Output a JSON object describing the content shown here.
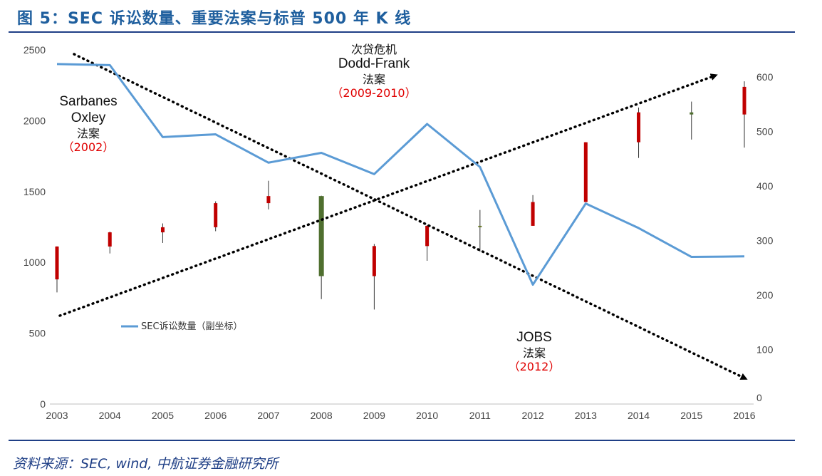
{
  "title": "图 5：SEC 诉讼数量、重要法案与标普 500 年 K 线",
  "source": "资料来源：SEC, wind, 中航证券金融研究所",
  "annotations": {
    "sox": {
      "line1": "Sarbanes",
      "line2": "Oxley",
      "line3": "法案",
      "line4": "（2002）"
    },
    "dodd": {
      "line1": "次贷危机",
      "line2": "Dodd-Frank",
      "line3": "法案",
      "line4": "（2009-2010）"
    },
    "jobs": {
      "line1": "JOBS",
      "line2": "法案",
      "line3": "（2012）"
    }
  },
  "colors": {
    "line": "#5b9bd5",
    "up": "#c00000",
    "down": "#4f6f2f",
    "axis_rule": "#1f3f86",
    "title": "#1f5f9e"
  },
  "chart_data": {
    "type": "candlestick+line",
    "categories": [
      "2003",
      "2004",
      "2005",
      "2006",
      "2007",
      "2008",
      "2009",
      "2010",
      "2011",
      "2012",
      "2013",
      "2014",
      "2015",
      "2016"
    ],
    "left_axis": {
      "range": [
        0,
        2500
      ],
      "ticks": [
        0,
        500,
        1000,
        1500,
        2000,
        2500
      ]
    },
    "right_axis": {
      "range": [
        0,
        650
      ],
      "ticks": [
        0,
        100,
        200,
        300,
        400,
        500,
        600
      ]
    },
    "candles": [
      {
        "year": "2003",
        "open": 880,
        "close": 1112,
        "high": 1113,
        "low": 788
      },
      {
        "year": "2004",
        "open": 1112,
        "close": 1212,
        "high": 1217,
        "low": 1063
      },
      {
        "year": "2005",
        "open": 1212,
        "close": 1248,
        "high": 1275,
        "low": 1137
      },
      {
        "year": "2006",
        "open": 1248,
        "close": 1418,
        "high": 1431,
        "low": 1220
      },
      {
        "year": "2007",
        "open": 1418,
        "close": 1468,
        "high": 1576,
        "low": 1374
      },
      {
        "year": "2008",
        "open": 1468,
        "close": 903,
        "high": 1471,
        "low": 741
      },
      {
        "year": "2009",
        "open": 903,
        "close": 1115,
        "high": 1130,
        "low": 667
      },
      {
        "year": "2010",
        "open": 1115,
        "close": 1258,
        "high": 1262,
        "low": 1011
      },
      {
        "year": "2011",
        "open": 1258,
        "close": 1258,
        "high": 1370,
        "low": 1075
      },
      {
        "year": "2012",
        "open": 1258,
        "close": 1426,
        "high": 1475,
        "low": 1259
      },
      {
        "year": "2013",
        "open": 1426,
        "close": 1848,
        "high": 1849,
        "low": 1426
      },
      {
        "year": "2014",
        "open": 1848,
        "close": 2059,
        "high": 2093,
        "low": 1737
      },
      {
        "year": "2015",
        "open": 2059,
        "close": 2044,
        "high": 2135,
        "low": 1867
      },
      {
        "year": "2016",
        "open": 2044,
        "close": 2239,
        "high": 2278,
        "low": 1810
      }
    ],
    "series": [
      {
        "name": "SEC诉讼数量（副坐标）",
        "axis": "right",
        "values": [
          624,
          622,
          490,
          495,
          443,
          461,
          422,
          514,
          435,
          219,
          368,
          323,
          270,
          271
        ]
      }
    ],
    "trend_arrows": [
      "downward from 2003 to 2016",
      "upward from 2003 to 2016"
    ],
    "legend": "bottom-left"
  }
}
